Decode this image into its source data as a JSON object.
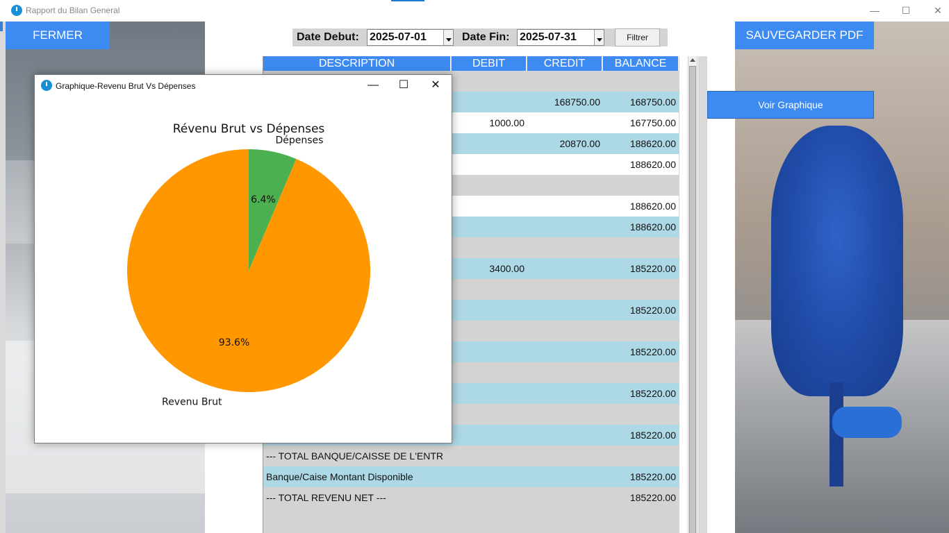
{
  "window": {
    "title": "Rapport du Bilan General",
    "minimize": "—",
    "maximize": "☐",
    "close": "✕"
  },
  "buttons": {
    "fermer": "FERMER",
    "pdf": "SAUVEGARDER PDF",
    "graph": "Voir Graphique",
    "filtrer": "Filtrer"
  },
  "filters": {
    "start_label": "Date Debut:",
    "start_value": "2025-07-01",
    "end_label": "Date Fin:",
    "end_value": "2025-07-31"
  },
  "table": {
    "headers": [
      "DESCRIPTION",
      "DEBIT",
      "CREDIT",
      "BALANCE"
    ],
    "rows": [
      {
        "style": "grey",
        "desc": "",
        "debit": "",
        "credit": "",
        "balance": ""
      },
      {
        "style": "blue",
        "desc": "",
        "debit": "",
        "credit": "168750.00",
        "balance": "168750.00"
      },
      {
        "style": "white",
        "desc": "",
        "debit": "1000.00",
        "credit": "",
        "balance": "167750.00"
      },
      {
        "style": "blue",
        "desc": "",
        "debit": "",
        "credit": "20870.00",
        "balance": "188620.00"
      },
      {
        "style": "white",
        "desc": "",
        "debit": "",
        "credit": "",
        "balance": "188620.00"
      },
      {
        "style": "grey",
        "desc": "",
        "debit": "",
        "credit": "",
        "balance": ""
      },
      {
        "style": "white",
        "desc": "",
        "debit": "",
        "credit": "",
        "balance": "188620.00"
      },
      {
        "style": "blue",
        "desc": "",
        "debit": "",
        "credit": "",
        "balance": "188620.00"
      },
      {
        "style": "grey",
        "desc": "",
        "debit": "",
        "credit": "",
        "balance": ""
      },
      {
        "style": "blue",
        "desc": "",
        "debit": "3400.00",
        "credit": "",
        "balance": "185220.00"
      },
      {
        "style": "grey",
        "desc": "",
        "debit": "",
        "credit": "",
        "balance": ""
      },
      {
        "style": "blue",
        "desc": "",
        "debit": "",
        "credit": "",
        "balance": "185220.00"
      },
      {
        "style": "grey",
        "desc": "",
        "debit": "",
        "credit": "",
        "balance": ""
      },
      {
        "style": "blue",
        "desc": "",
        "debit": "",
        "credit": "",
        "balance": "185220.00"
      },
      {
        "style": "grey",
        "desc": "",
        "debit": "",
        "credit": "",
        "balance": ""
      },
      {
        "style": "blue",
        "desc": "",
        "debit": "",
        "credit": "",
        "balance": "185220.00"
      },
      {
        "style": "grey",
        "desc": "",
        "debit": "",
        "credit": "",
        "balance": ""
      },
      {
        "style": "blue",
        "desc": "",
        "debit": "",
        "credit": "",
        "balance": "185220.00"
      },
      {
        "style": "grey",
        "desc": "--- TOTAL BANQUE/CAISSE DE L'ENTR",
        "debit": "",
        "credit": "",
        "balance": ""
      },
      {
        "style": "blue",
        "desc": "Banque/Caise Montant Disponible",
        "debit": "",
        "credit": "",
        "balance": "185220.00"
      },
      {
        "style": "grey",
        "desc": "--- TOTAL REVENU NET  ---",
        "debit": "",
        "credit": "",
        "balance": "185220.00"
      }
    ]
  },
  "chart_window": {
    "title": "Graphique-Revenu Brut Vs Dépenses",
    "minimize": "—",
    "maximize": "☐",
    "close": "✕"
  },
  "chart_data": {
    "type": "pie",
    "title": "Révenu Brut vs Dépenses",
    "slices": [
      {
        "label": "Dépenses",
        "value": 6.4,
        "pct_label": "6.4%",
        "color": "#4caf50"
      },
      {
        "label": "Revenu Brut",
        "value": 93.6,
        "pct_label": "93.6%",
        "color": "#ff9800"
      }
    ],
    "start_angle": 90,
    "direction": "clockwise"
  }
}
